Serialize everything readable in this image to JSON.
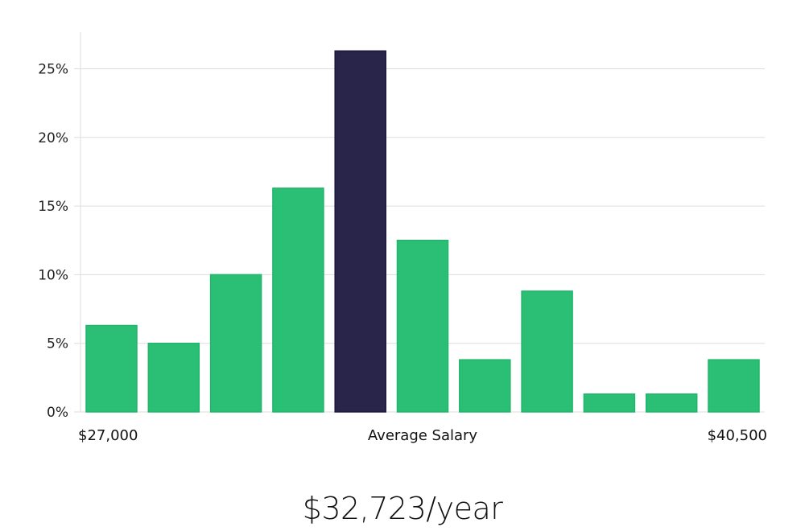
{
  "chart_data": {
    "type": "bar",
    "title": "",
    "xlabel": "Average Salary",
    "ylabel": "",
    "x_tick_labels": {
      "left": "$27,000",
      "right": "$40,500"
    },
    "categories": [
      "1",
      "2",
      "3",
      "4",
      "5",
      "6",
      "7",
      "8",
      "9",
      "10",
      "11"
    ],
    "values": [
      6.3,
      5.0,
      10.0,
      16.3,
      26.3,
      12.5,
      3.8,
      8.8,
      1.3,
      1.3,
      3.8
    ],
    "highlight_index": 4,
    "ylim": [
      0,
      27.5
    ],
    "yticks": [
      0,
      5,
      10,
      15,
      20,
      25
    ],
    "ytick_suffix": "%",
    "grid": true,
    "colors": {
      "bar": "#2bbf76",
      "bar_border": "#22b56c",
      "highlight": "#28244a",
      "highlight_border": "#1a1740",
      "grid": "#dddddd"
    }
  },
  "summary": {
    "average_salary": "$32,723/year"
  }
}
